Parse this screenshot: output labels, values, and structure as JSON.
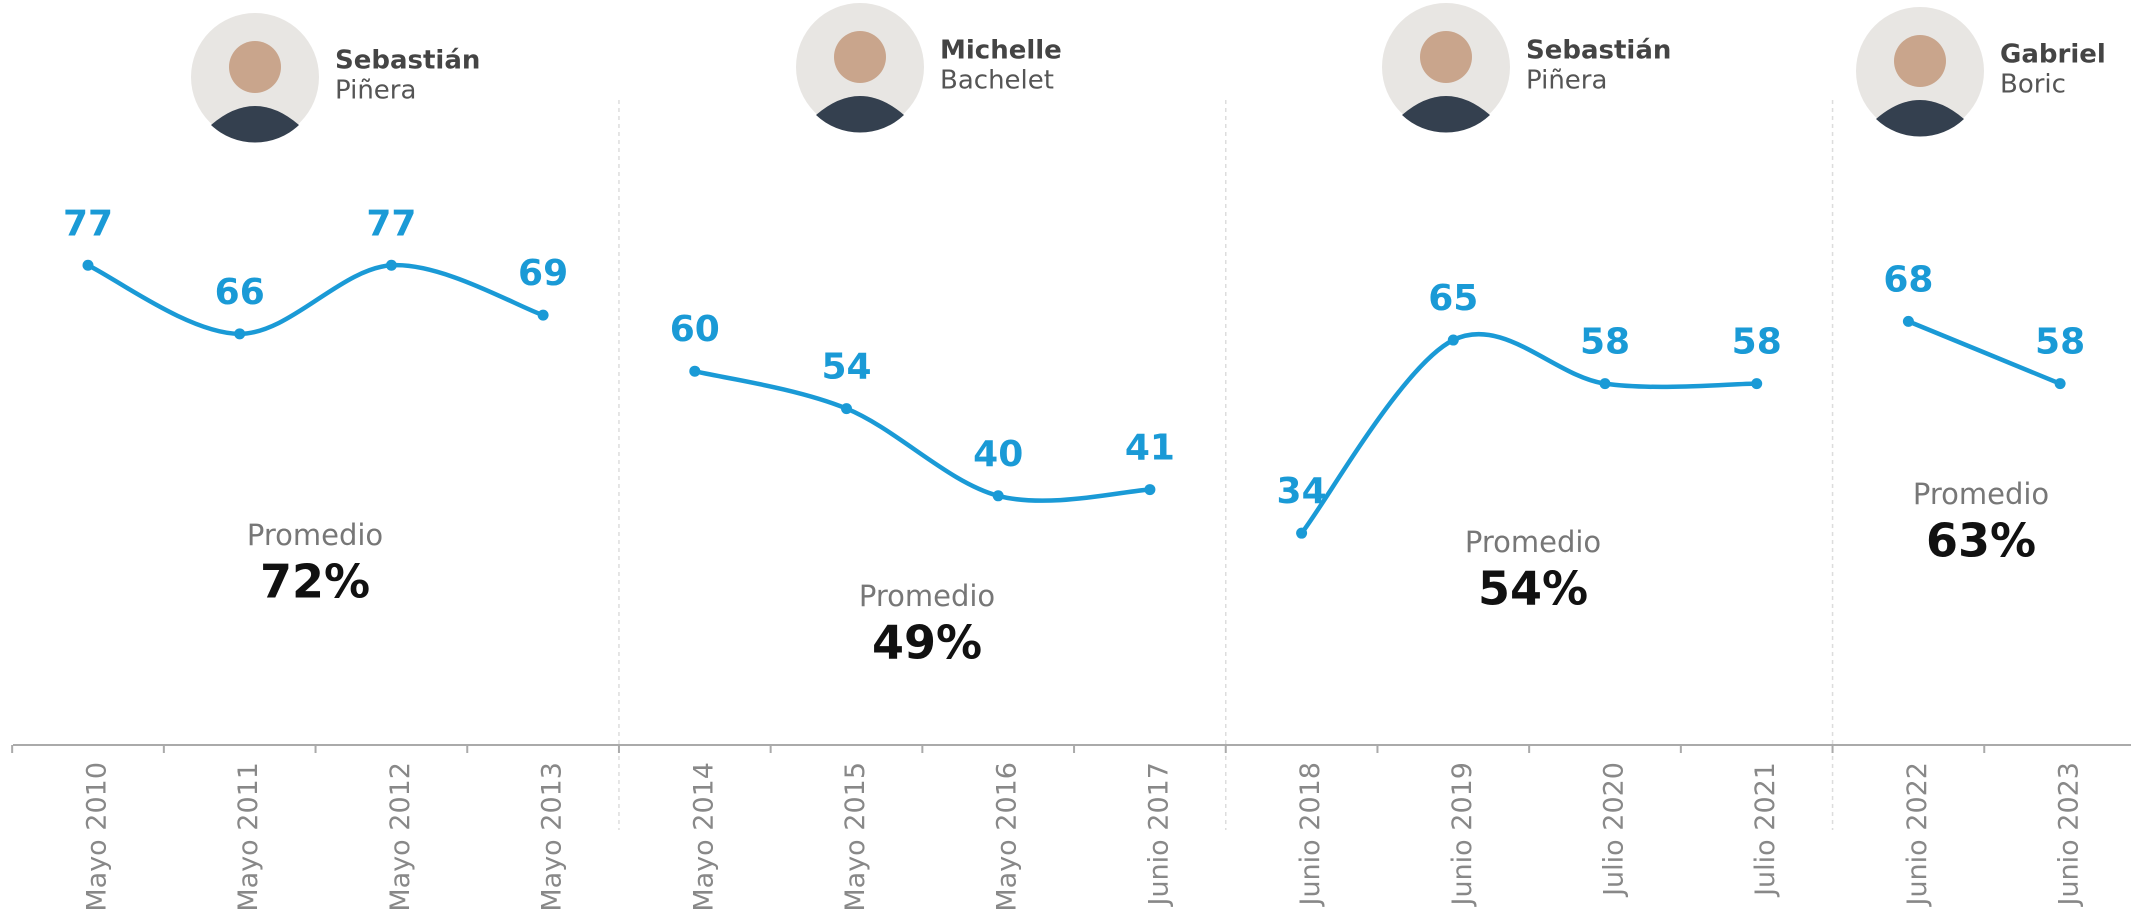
{
  "chart_data": [
    {
      "type": "line",
      "title": "Sebastián",
      "subtitle": "Piñera",
      "categories": [
        "Mayo 2010",
        "Mayo 2011",
        "Mayo 2012",
        "Mayo 2013"
      ],
      "values": [
        77,
        66,
        77,
        69
      ],
      "color": "#1a9ad6",
      "ylim": [
        0,
        100
      ],
      "annotation": "Promedio",
      "average": 72,
      "average_label": "72%"
    },
    {
      "type": "line",
      "title": "Michelle",
      "subtitle": "Bachelet",
      "categories": [
        "Mayo 2014",
        "Mayo 2015",
        "Mayo 2016",
        "Junio 2017"
      ],
      "values": [
        60,
        54,
        40,
        41
      ],
      "color": "#1a9ad6",
      "ylim": [
        0,
        100
      ],
      "annotation": "Promedio",
      "average": 49,
      "average_label": "49%"
    },
    {
      "type": "line",
      "title": "Sebastián",
      "subtitle": "Piñera",
      "categories": [
        "Junio 2018",
        "Junio 2019",
        "Julio 2020",
        "Julio 2021"
      ],
      "values": [
        34,
        65,
        58,
        58
      ],
      "color": "#1a9ad6",
      "ylim": [
        0,
        100
      ],
      "annotation": "Promedio",
      "average": 54,
      "average_label": "54%"
    },
    {
      "type": "line",
      "title": "Gabriel",
      "subtitle": "Boric",
      "categories": [
        "Junio 2022",
        "Junio 2023"
      ],
      "values": [
        68,
        58
      ],
      "color": "#1a9ad6",
      "ylim": [
        0,
        100
      ],
      "annotation": "Promedio",
      "average": 63,
      "average_label": "63%"
    }
  ]
}
